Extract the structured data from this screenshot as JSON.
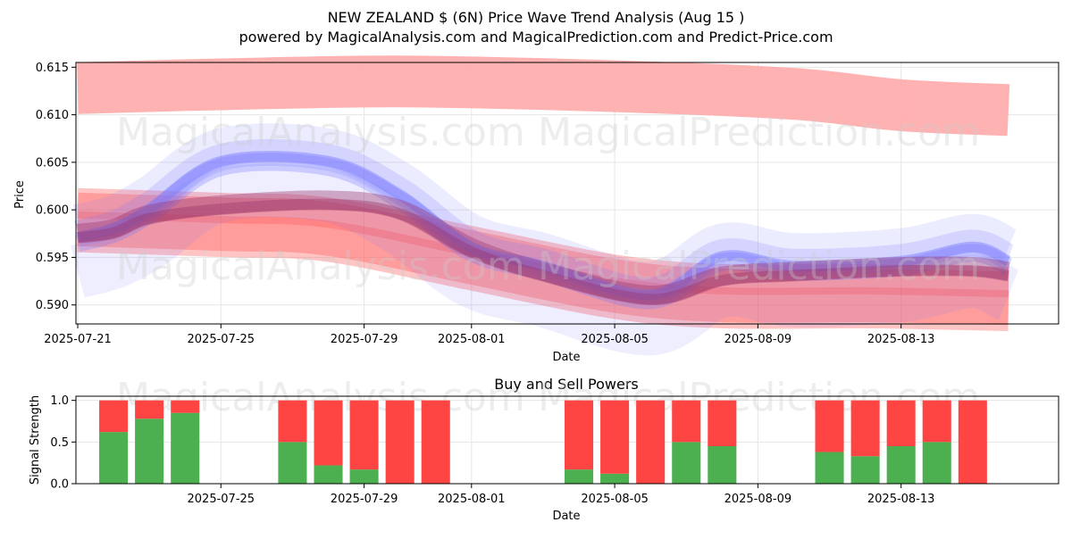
{
  "title": "NEW ZEALAND $ (6N) Price Wave Trend Analysis (Aug 15 )",
  "subtitle": "powered by MagicalAnalysis.com and MagicalPrediction.com and Predict-Price.com",
  "watermarks": [
    "MagicalAnalysis.com",
    "MagicalPrediction.com"
  ],
  "colors": {
    "bull": "#4caf50",
    "bear": "#ff4444",
    "blue": "#7777ff",
    "red": "#ff5555",
    "redLight": "#ffaaaa",
    "purple": "#993366"
  },
  "chart_data": [
    {
      "type": "area",
      "xlabel": "Date",
      "ylabel": "Price",
      "x_range": [
        "2025-07-21",
        "2025-08-17"
      ],
      "ylim": [
        0.588,
        0.6155
      ],
      "x_ticks": [
        "2025-07-21",
        "2025-07-25",
        "2025-07-29",
        "2025-08-01",
        "2025-08-05",
        "2025-08-09",
        "2025-08-13"
      ],
      "y_ticks": [
        "0.590",
        "0.595",
        "0.600",
        "0.605",
        "0.610",
        "0.615"
      ],
      "grid": true,
      "series": [
        {
          "band": "upper-red",
          "x": [
            "2025-07-21",
            "2025-07-25",
            "2025-07-30",
            "2025-08-05",
            "2025-08-10",
            "2025-08-13",
            "2025-08-16"
          ],
          "values": [
            0.6128,
            0.6132,
            0.6135,
            0.613,
            0.6122,
            0.611,
            0.6105
          ]
        },
        {
          "band": "main-red",
          "x": [
            "2025-07-21",
            "2025-07-25",
            "2025-07-28",
            "2025-08-01",
            "2025-08-05",
            "2025-08-08",
            "2025-08-12",
            "2025-08-16"
          ],
          "values": [
            0.5995,
            0.599,
            0.5985,
            0.5955,
            0.5925,
            0.5915,
            0.5915,
            0.5912
          ]
        },
        {
          "band": "blue-wave",
          "x": [
            "2025-07-21",
            "2025-07-22",
            "2025-07-23",
            "2025-07-25",
            "2025-07-28",
            "2025-07-30",
            "2025-08-01",
            "2025-08-03",
            "2025-08-06",
            "2025-08-08",
            "2025-08-10",
            "2025-08-13",
            "2025-08-15",
            "2025-08-16"
          ],
          "values": [
            0.5965,
            0.5975,
            0.5995,
            0.6045,
            0.6045,
            0.601,
            0.5955,
            0.5935,
            0.5905,
            0.5945,
            0.5935,
            0.594,
            0.5955,
            0.594
          ]
        },
        {
          "band": "purple-core",
          "x": [
            "2025-07-21",
            "2025-07-22",
            "2025-07-23",
            "2025-07-25",
            "2025-07-28",
            "2025-07-30",
            "2025-08-01",
            "2025-08-03",
            "2025-08-06",
            "2025-08-08",
            "2025-08-10",
            "2025-08-13",
            "2025-08-15",
            "2025-08-16"
          ],
          "values": [
            0.5975,
            0.598,
            0.5995,
            0.6005,
            0.601,
            0.6,
            0.596,
            0.5935,
            0.591,
            0.593,
            0.5935,
            0.594,
            0.594,
            0.5935
          ]
        }
      ]
    },
    {
      "type": "bar",
      "title": "Buy and Sell Powers",
      "xlabel": "Date",
      "ylabel": "Signal Strength",
      "ylim": [
        0,
        1.05
      ],
      "y_ticks": [
        "0.0",
        "0.5",
        "1.0"
      ],
      "x_ticks": [
        "2025-07-25",
        "2025-07-29",
        "2025-08-01",
        "2025-08-05",
        "2025-08-09",
        "2025-08-13"
      ],
      "categories": [
        "2025-07-22",
        "2025-07-23",
        "2025-07-24",
        "2025-07-27",
        "2025-07-28",
        "2025-07-29",
        "2025-07-30",
        "2025-07-31",
        "2025-08-04",
        "2025-08-05",
        "2025-08-06",
        "2025-08-07",
        "2025-08-08",
        "2025-08-11",
        "2025-08-12",
        "2025-08-13",
        "2025-08-14",
        "2025-08-15"
      ],
      "series": [
        {
          "values": [
            0.62,
            0.78,
            0.85,
            0.5,
            0.22,
            0.17,
            0.0,
            0.0,
            0.17,
            0.12,
            0.0,
            0.5,
            0.45,
            0.38,
            0.33,
            0.45,
            0.5,
            0.0
          ]
        },
        {
          "values": [
            0.38,
            0.22,
            0.15,
            0.5,
            0.78,
            0.83,
            1.0,
            1.0,
            0.83,
            0.88,
            1.0,
            0.5,
            0.55,
            0.62,
            0.67,
            0.55,
            0.5,
            1.0
          ]
        }
      ]
    }
  ]
}
